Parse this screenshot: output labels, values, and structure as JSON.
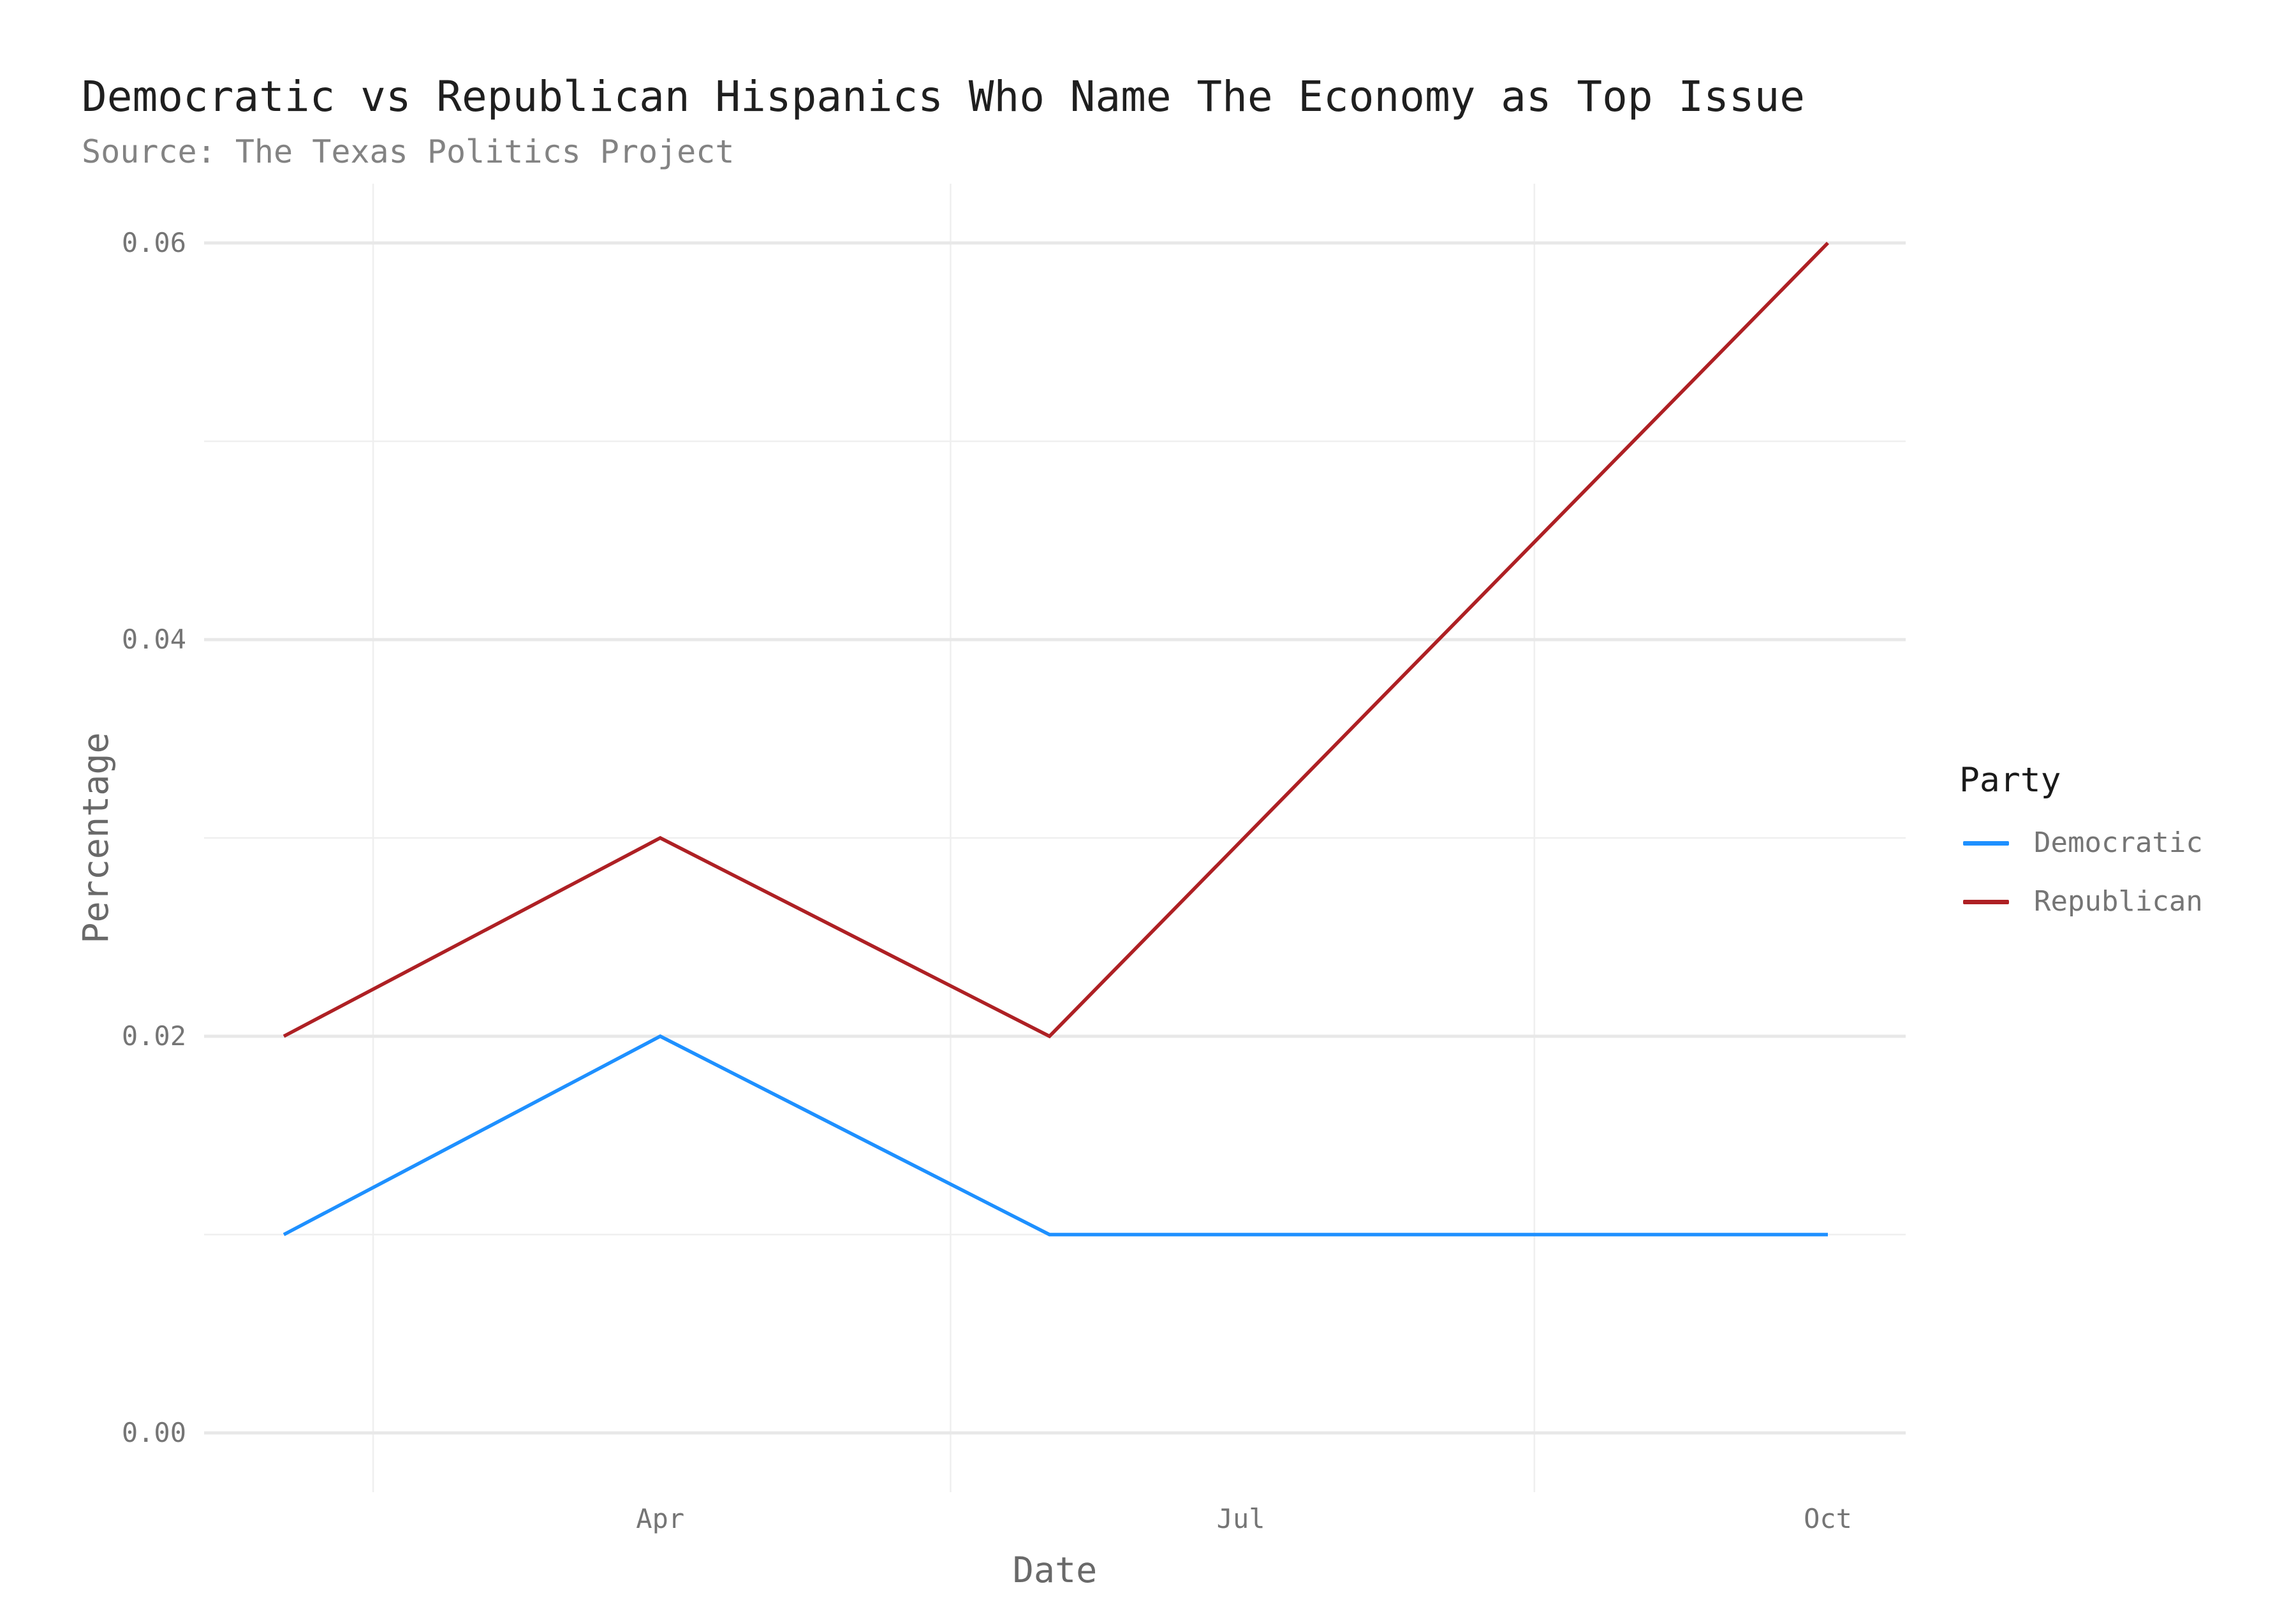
{
  "title": "Democratic vs Republican Hispanics Who Name The Economy as Top Issue",
  "subtitle": "Source: The Texas Politics Project",
  "colors": {
    "democratic": "#1E90FF",
    "republican": "#AE2024",
    "grid_major": "#e8e8e8",
    "grid_minor": "#efefef",
    "title_text": "#1f1f1f",
    "subtitle_text": "#838383",
    "tick_text": "#757575",
    "axis_title_text": "#696969",
    "legend_title_text": "#1a1a1a",
    "legend_label_text": "#757575"
  },
  "axes": {
    "x_label": "Date",
    "y_label": "Percentage",
    "x_ticks": [
      {
        "label": "Apr",
        "day": 59
      },
      {
        "label": "Jul",
        "day": 150
      },
      {
        "label": "Oct",
        "day": 242
      }
    ],
    "y_ticks": [
      {
        "label": "0.00",
        "value": 0.0
      },
      {
        "label": "0.02",
        "value": 0.02
      },
      {
        "label": "0.04",
        "value": 0.04
      },
      {
        "label": "0.06",
        "value": 0.06
      }
    ]
  },
  "legend": {
    "title": "Party",
    "items": [
      {
        "label": "Democratic",
        "color": "#1E90FF"
      },
      {
        "label": "Republican",
        "color": "#AE2024"
      }
    ]
  },
  "chart_data": {
    "type": "line",
    "title": "Democratic vs Republican Hispanics Who Name The Economy as Top Issue",
    "subtitle": "Source: The Texas Politics Project",
    "xlabel": "Date",
    "ylabel": "Percentage",
    "x_unit": "date, day offset from Feb 1",
    "x_tick_labels": [
      "Apr",
      "Jul",
      "Oct"
    ],
    "y_tick_labels": [
      "0.00",
      "0.02",
      "0.04",
      "0.06"
    ],
    "ylim": [
      0.0,
      0.06
    ],
    "grid": "horizontal major+minor, vertical minor only",
    "legend_position": "right",
    "minor_y_values": [
      0.01,
      0.03,
      0.05
    ],
    "minor_x_days": [
      14,
      104.5,
      196
    ],
    "series": [
      {
        "name": "Democratic",
        "color": "#1E90FF",
        "points": [
          {
            "date": "Feb",
            "day": 0,
            "value": 0.01
          },
          {
            "date": "Apr",
            "day": 59,
            "value": 0.02
          },
          {
            "date": "Jun",
            "day": 120,
            "value": 0.01
          },
          {
            "date": "Oct",
            "day": 242,
            "value": 0.01
          }
        ]
      },
      {
        "name": "Republican",
        "color": "#AE2024",
        "points": [
          {
            "date": "Feb",
            "day": 0,
            "value": 0.02
          },
          {
            "date": "Apr",
            "day": 59,
            "value": 0.03
          },
          {
            "date": "Jun",
            "day": 120,
            "value": 0.02
          },
          {
            "date": "Oct",
            "day": 242,
            "value": 0.06
          }
        ]
      }
    ]
  }
}
